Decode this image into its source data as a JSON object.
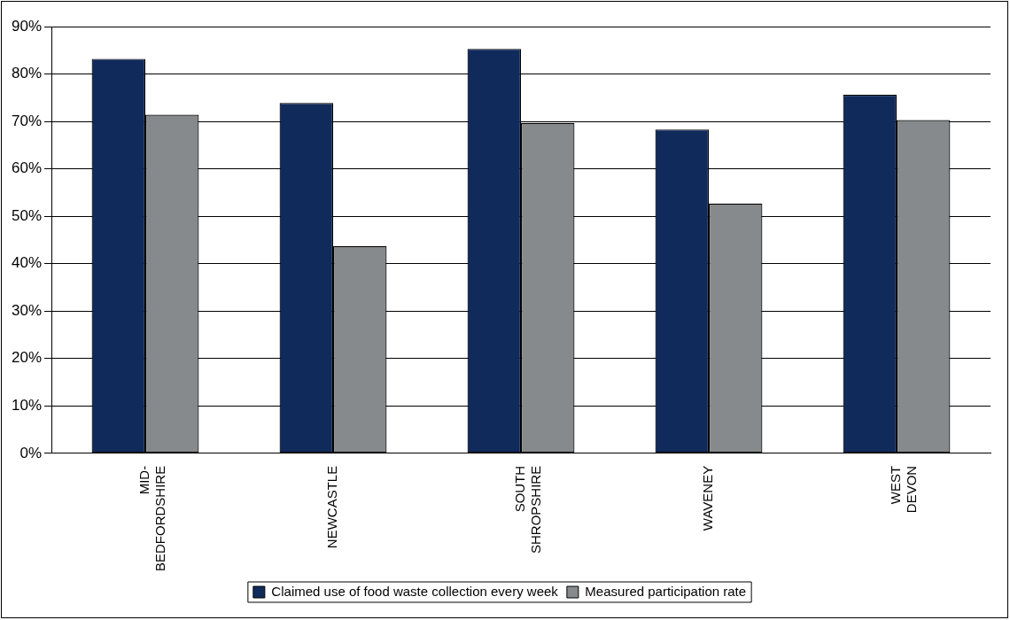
{
  "chart_data": {
    "type": "bar",
    "categories": [
      "MID-BEDFORDSHIRE",
      "NEWCASTLE",
      "SOUTH SHROPSHIRE",
      "WAVENEY",
      "WEST DEVON"
    ],
    "series": [
      {
        "name": "Claimed use of food waste collection every week",
        "color": "#102a5c",
        "values": [
          83.2,
          73.9,
          85.3,
          68.3,
          75.6
        ]
      },
      {
        "name": "Measured participation rate",
        "color": "#868a8c",
        "values": [
          71.4,
          43.7,
          69.7,
          52.7,
          70.3
        ]
      }
    ],
    "ylim": [
      0,
      90
    ],
    "yticks": [
      {
        "value": 0,
        "label": "0%"
      },
      {
        "value": 10,
        "label": "10%"
      },
      {
        "value": 20,
        "label": "20%"
      },
      {
        "value": 30,
        "label": "30%"
      },
      {
        "value": 40,
        "label": "40%"
      },
      {
        "value": 50,
        "label": "50%"
      },
      {
        "value": 60,
        "label": "60%"
      },
      {
        "value": 70,
        "label": "70%"
      },
      {
        "value": 80,
        "label": "80%"
      },
      {
        "value": 90,
        "label": "90%"
      }
    ],
    "grid": "y",
    "legend": "bottom"
  }
}
